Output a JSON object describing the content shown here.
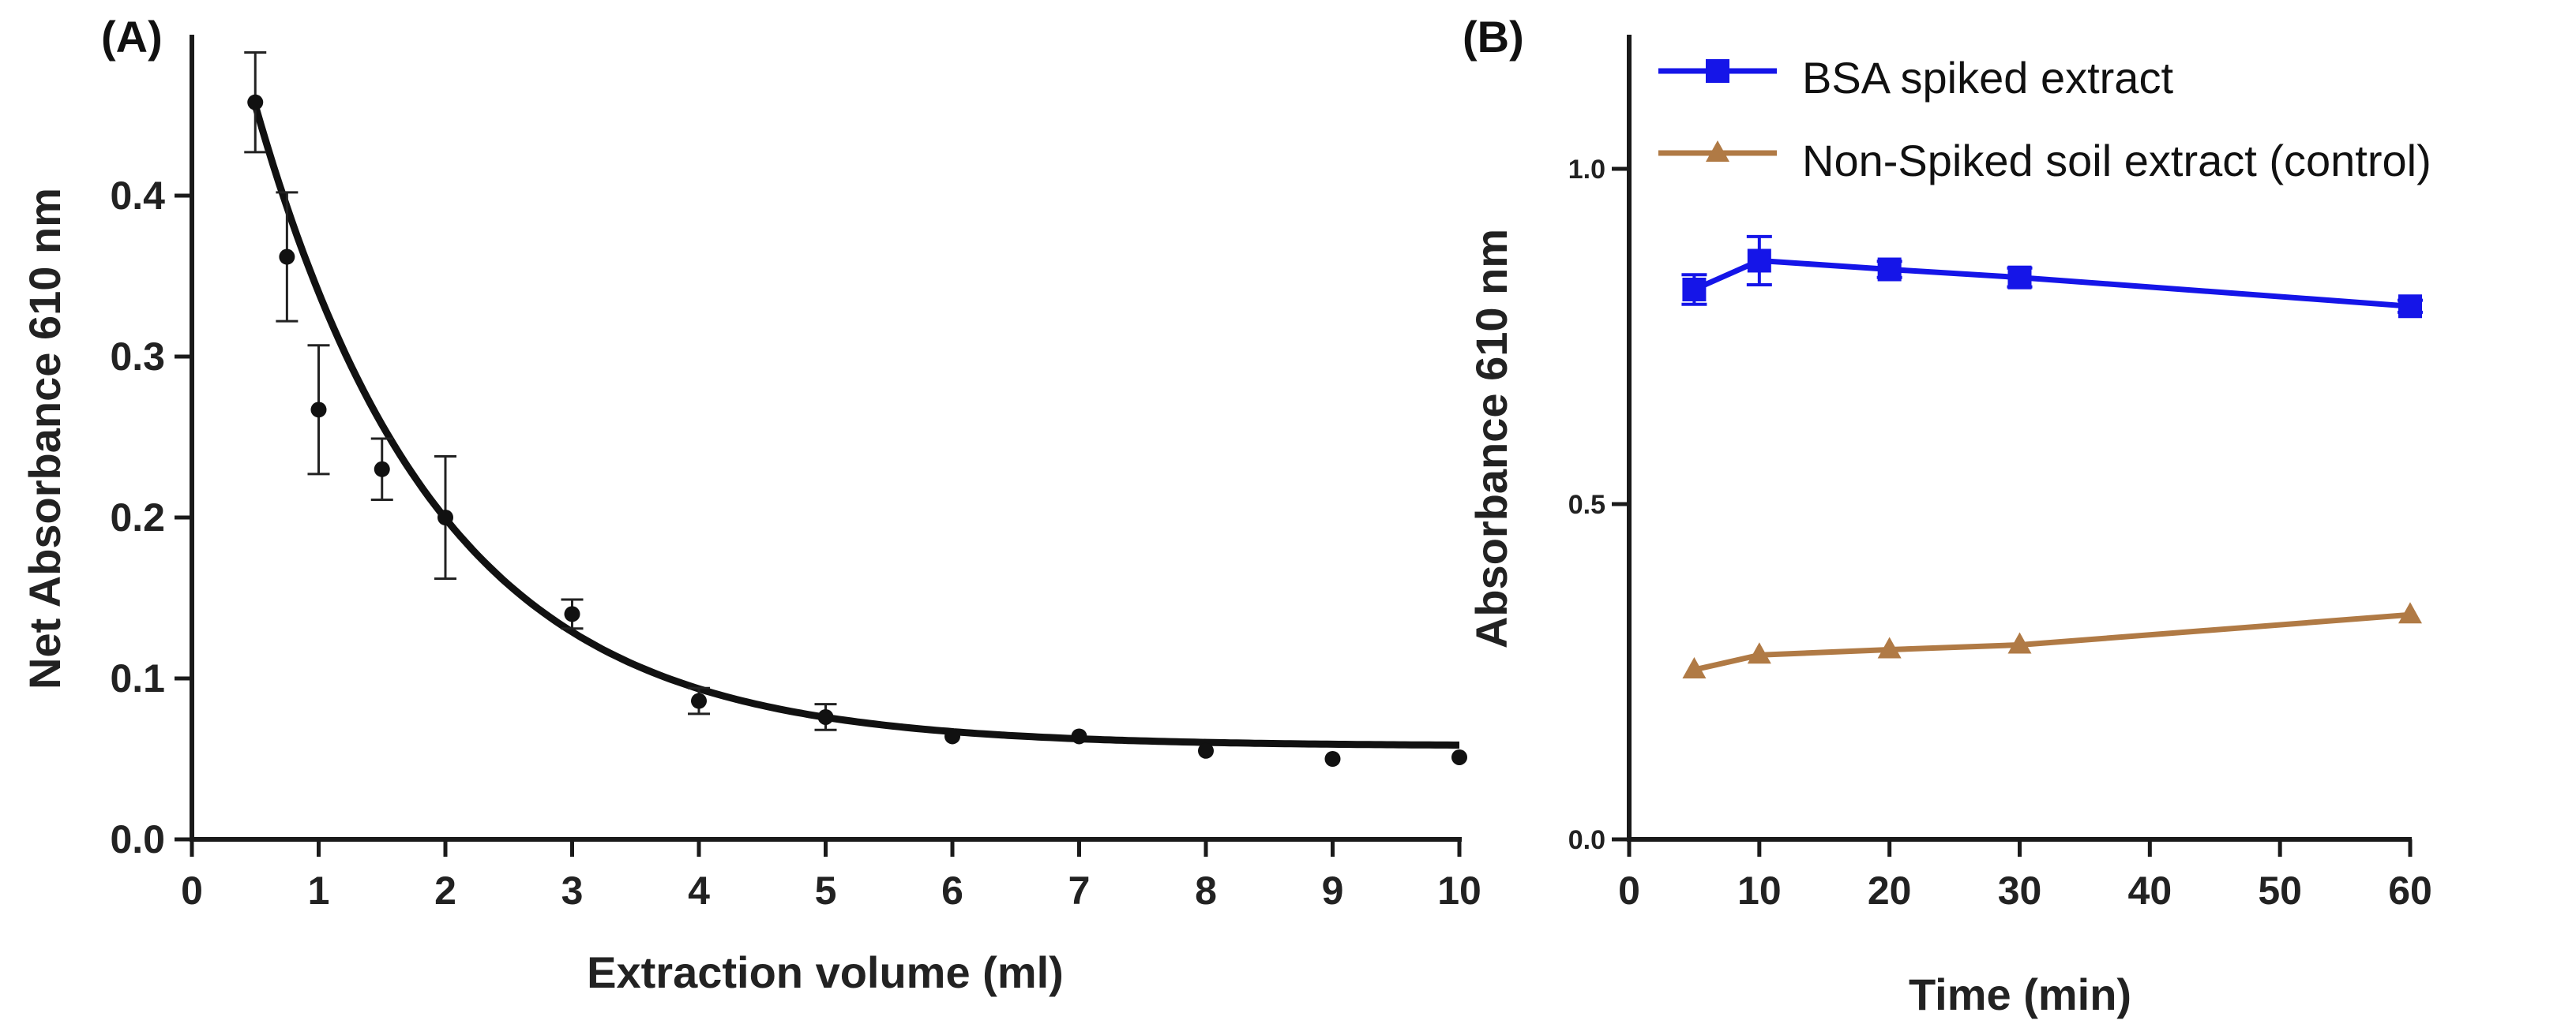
{
  "chart_data": [
    {
      "panel_label": "(A)",
      "type": "scatter",
      "xlabel": "Extraction volume (ml)",
      "ylabel": "Net Absorbance 610 nm",
      "xlim": [
        0,
        10
      ],
      "ylim": [
        0,
        0.5
      ],
      "xticks": [
        "0",
        "1",
        "2",
        "3",
        "4",
        "5",
        "6",
        "7",
        "8",
        "9",
        "10"
      ],
      "yticks": [
        "0.0",
        "0.1",
        "0.2",
        "0.3",
        "0.4"
      ],
      "points": [
        {
          "x": 0.5,
          "y": 0.458,
          "err": 0.031
        },
        {
          "x": 0.75,
          "y": 0.362,
          "err": 0.04
        },
        {
          "x": 1,
          "y": 0.267,
          "err": 0.04
        },
        {
          "x": 1.5,
          "y": 0.23,
          "err": 0.019
        },
        {
          "x": 2,
          "y": 0.2,
          "err": 0.038
        },
        {
          "x": 3,
          "y": 0.14,
          "err": 0.009
        },
        {
          "x": 4,
          "y": 0.086,
          "err": 0.008
        },
        {
          "x": 5,
          "y": 0.076,
          "err": 0.008
        },
        {
          "x": 6,
          "y": 0.064,
          "err": 0
        },
        {
          "x": 7,
          "y": 0.064,
          "err": 0
        },
        {
          "x": 8,
          "y": 0.055,
          "err": 0
        },
        {
          "x": 9,
          "y": 0.05,
          "err": 0
        },
        {
          "x": 10,
          "y": 0.051,
          "err": 0
        }
      ],
      "fit": {
        "model": "exponential decay",
        "plateau": 0.058,
        "amplitude": 0.562,
        "rate": 0.69,
        "x_start": 0.5,
        "x_end": 10
      }
    },
    {
      "panel_label": "(B)",
      "type": "line",
      "xlabel": "Time (min)",
      "ylabel": "Absorbance 610 nm",
      "xlim": [
        0,
        60
      ],
      "ylim": [
        0,
        1.2
      ],
      "xticks": [
        "0",
        "10",
        "20",
        "30",
        "40",
        "50",
        "60"
      ],
      "yticks": [
        "0.0",
        "0.5",
        "1.0"
      ],
      "legend_position": "top-right",
      "series": [
        {
          "name": "BSA spiked extract",
          "color": "#1515e8",
          "marker": "square",
          "x": [
            5,
            10,
            20,
            30,
            60
          ],
          "y": [
            0.82,
            0.863,
            0.85,
            0.838,
            0.795
          ],
          "err": [
            0.022,
            0.036,
            0.012,
            0.014,
            0.009
          ]
        },
        {
          "name": "Non-Spiked soil extract (control)",
          "color": "#b07a45",
          "marker": "triangle",
          "x": [
            5,
            10,
            20,
            30,
            60
          ],
          "y": [
            0.253,
            0.275,
            0.283,
            0.29,
            0.335
          ],
          "err": [
            0,
            0,
            0,
            0,
            0
          ]
        }
      ]
    }
  ]
}
